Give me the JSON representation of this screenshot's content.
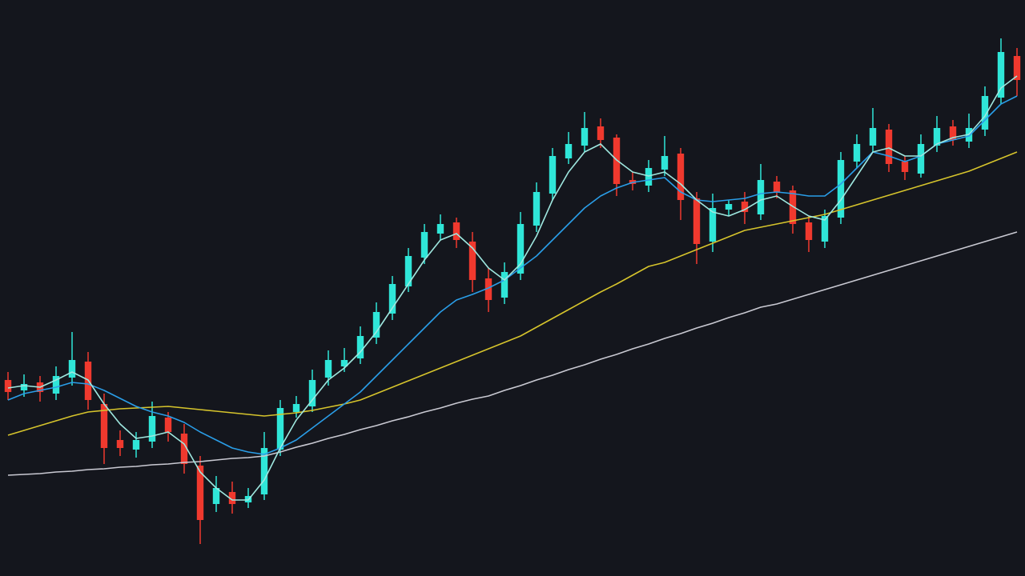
{
  "chart_data": {
    "type": "candlestick",
    "background": "#14161d",
    "up_color": "#2fe6d8",
    "down_color": "#f0392e",
    "xlim": [
      -0.5,
      63.5
    ],
    "ylim": [
      0,
      720
    ],
    "open": [
      245,
      232,
      242,
      228,
      248,
      268,
      215,
      170,
      158,
      168,
      198,
      178,
      138,
      90,
      105,
      92,
      102,
      158,
      205,
      212,
      248,
      262,
      272,
      298,
      328,
      362,
      398,
      428,
      442,
      418,
      372,
      348,
      378,
      438,
      478,
      522,
      538,
      562,
      548,
      495,
      488,
      508,
      528,
      472,
      418,
      458,
      468,
      452,
      493,
      482,
      442,
      418,
      448,
      518,
      538,
      558,
      518,
      503,
      538,
      562,
      543,
      558,
      598,
      650
    ],
    "high": [
      255,
      252,
      250,
      262,
      305,
      280,
      228,
      182,
      180,
      218,
      205,
      190,
      150,
      125,
      118,
      110,
      180,
      220,
      225,
      258,
      282,
      285,
      312,
      342,
      375,
      410,
      440,
      452,
      448,
      430,
      385,
      392,
      455,
      492,
      535,
      555,
      580,
      572,
      552,
      505,
      520,
      550,
      535,
      480,
      478,
      470,
      480,
      515,
      500,
      488,
      450,
      458,
      530,
      552,
      585,
      565,
      525,
      552,
      575,
      570,
      578,
      612,
      672,
      660
    ],
    "low": [
      220,
      224,
      218,
      220,
      238,
      208,
      140,
      150,
      148,
      160,
      168,
      128,
      40,
      80,
      78,
      85,
      95,
      150,
      198,
      205,
      238,
      255,
      265,
      290,
      320,
      355,
      390,
      420,
      410,
      355,
      330,
      340,
      370,
      430,
      470,
      515,
      530,
      535,
      475,
      482,
      480,
      500,
      445,
      390,
      405,
      450,
      440,
      445,
      472,
      428,
      405,
      410,
      440,
      510,
      530,
      505,
      495,
      498,
      530,
      538,
      535,
      550,
      590,
      600
    ],
    "close": [
      230,
      240,
      230,
      250,
      270,
      220,
      160,
      160,
      170,
      200,
      180,
      140,
      70,
      110,
      90,
      100,
      160,
      210,
      215,
      245,
      270,
      270,
      300,
      330,
      365,
      400,
      430,
      440,
      420,
      370,
      345,
      380,
      440,
      480,
      525,
      540,
      560,
      545,
      490,
      490,
      510,
      525,
      470,
      415,
      460,
      465,
      455,
      495,
      480,
      440,
      420,
      450,
      520,
      540,
      560,
      515,
      505,
      540,
      560,
      545,
      560,
      600,
      655,
      620
    ],
    "lines": [
      {
        "color": "#c9c9d2",
        "values": [
          126,
          127,
          128,
          130,
          131,
          133,
          134,
          136,
          137,
          139,
          140,
          142,
          143,
          145,
          147,
          148,
          150,
          155,
          161,
          166,
          172,
          177,
          183,
          188,
          194,
          199,
          205,
          210,
          216,
          221,
          225,
          232,
          238,
          245,
          251,
          258,
          264,
          271,
          277,
          284,
          290,
          297,
          303,
          310,
          316,
          323,
          329,
          336,
          340,
          346,
          352,
          358,
          364,
          370,
          376,
          382,
          388,
          394,
          400,
          406,
          412,
          418,
          424,
          430
        ]
      },
      {
        "color": "#d6c42c",
        "values": [
          176,
          182,
          188,
          194,
          200,
          205,
          207,
          209,
          210,
          211,
          212,
          210,
          208,
          206,
          204,
          202,
          200,
          202,
          204,
          207,
          211,
          215,
          220,
          228,
          236,
          244,
          252,
          260,
          268,
          276,
          284,
          292,
          300,
          311,
          322,
          333,
          344,
          355,
          365,
          376,
          387,
          392,
          400,
          408,
          416,
          424,
          432,
          436,
          440,
          444,
          448,
          452,
          458,
          464,
          470,
          476,
          482,
          488,
          494,
          500,
          506,
          514,
          522,
          530
        ]
      },
      {
        "color": "#2a9ee8",
        "values": [
          220,
          228,
          232,
          236,
          242,
          240,
          232,
          222,
          212,
          205,
          200,
          192,
          180,
          170,
          160,
          155,
          152,
          160,
          170,
          185,
          200,
          215,
          230,
          250,
          270,
          290,
          310,
          330,
          345,
          352,
          360,
          370,
          385,
          400,
          420,
          440,
          460,
          475,
          485,
          492,
          495,
          498,
          480,
          470,
          468,
          470,
          472,
          478,
          480,
          478,
          475,
          475,
          490,
          510,
          530,
          525,
          518,
          525,
          540,
          545,
          550,
          570,
          590,
          600
        ]
      },
      {
        "color": "#9fe8e0",
        "values": [
          235,
          238,
          236,
          245,
          255,
          245,
          215,
          190,
          172,
          175,
          180,
          165,
          130,
          110,
          95,
          95,
          120,
          160,
          195,
          220,
          245,
          260,
          280,
          305,
          335,
          365,
          395,
          420,
          428,
          410,
          385,
          370,
          390,
          425,
          470,
          505,
          530,
          540,
          520,
          505,
          500,
          505,
          490,
          470,
          455,
          450,
          458,
          470,
          475,
          462,
          450,
          445,
          470,
          500,
          530,
          535,
          525,
          525,
          540,
          548,
          552,
          575,
          610,
          625
        ]
      }
    ]
  }
}
